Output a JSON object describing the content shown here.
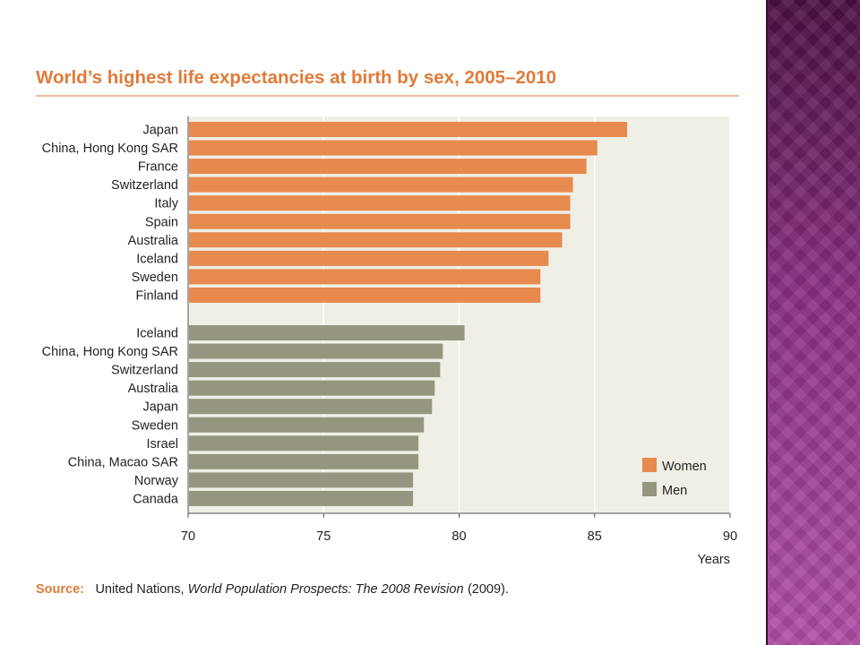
{
  "colors": {
    "women": "#e68a4e",
    "men": "#96957f",
    "plot_bg": "#efefe6",
    "accent": "#e07b39",
    "gridline": "#ffffff",
    "axis": "#555555"
  },
  "chart_data": {
    "type": "bar",
    "orientation": "horizontal",
    "title": "World’s highest life expectancies at birth by sex, 2005–2010",
    "xlabel": "Years",
    "ylabel": "",
    "xlim": [
      70,
      90
    ],
    "xticks": [
      "70",
      "75",
      "80",
      "85",
      "90"
    ],
    "grid": true,
    "legend_position": "bottom-right",
    "series": [
      {
        "name": "Women",
        "categories": [
          "Japan",
          "China, Hong Kong SAR",
          "France",
          "Switzerland",
          "Italy",
          "Spain",
          "Australia",
          "Iceland",
          "Sweden",
          "Finland"
        ],
        "values": [
          86.2,
          85.1,
          84.7,
          84.2,
          84.1,
          84.1,
          83.8,
          83.3,
          83.0,
          83.0
        ]
      },
      {
        "name": "Men",
        "categories": [
          "Iceland",
          "China, Hong Kong SAR",
          "Switzerland",
          "Australia",
          "Japan",
          "Sweden",
          "Israel",
          "China, Macao SAR",
          "Norway",
          "Canada"
        ],
        "values": [
          80.2,
          79.4,
          79.3,
          79.1,
          79.0,
          78.7,
          78.5,
          78.5,
          78.3,
          78.3
        ]
      }
    ],
    "source_label": "Source:",
    "source_text": "United Nations, ",
    "source_title": "World Population Prospects: The 2008 Revision",
    "source_year": " (2009)."
  }
}
